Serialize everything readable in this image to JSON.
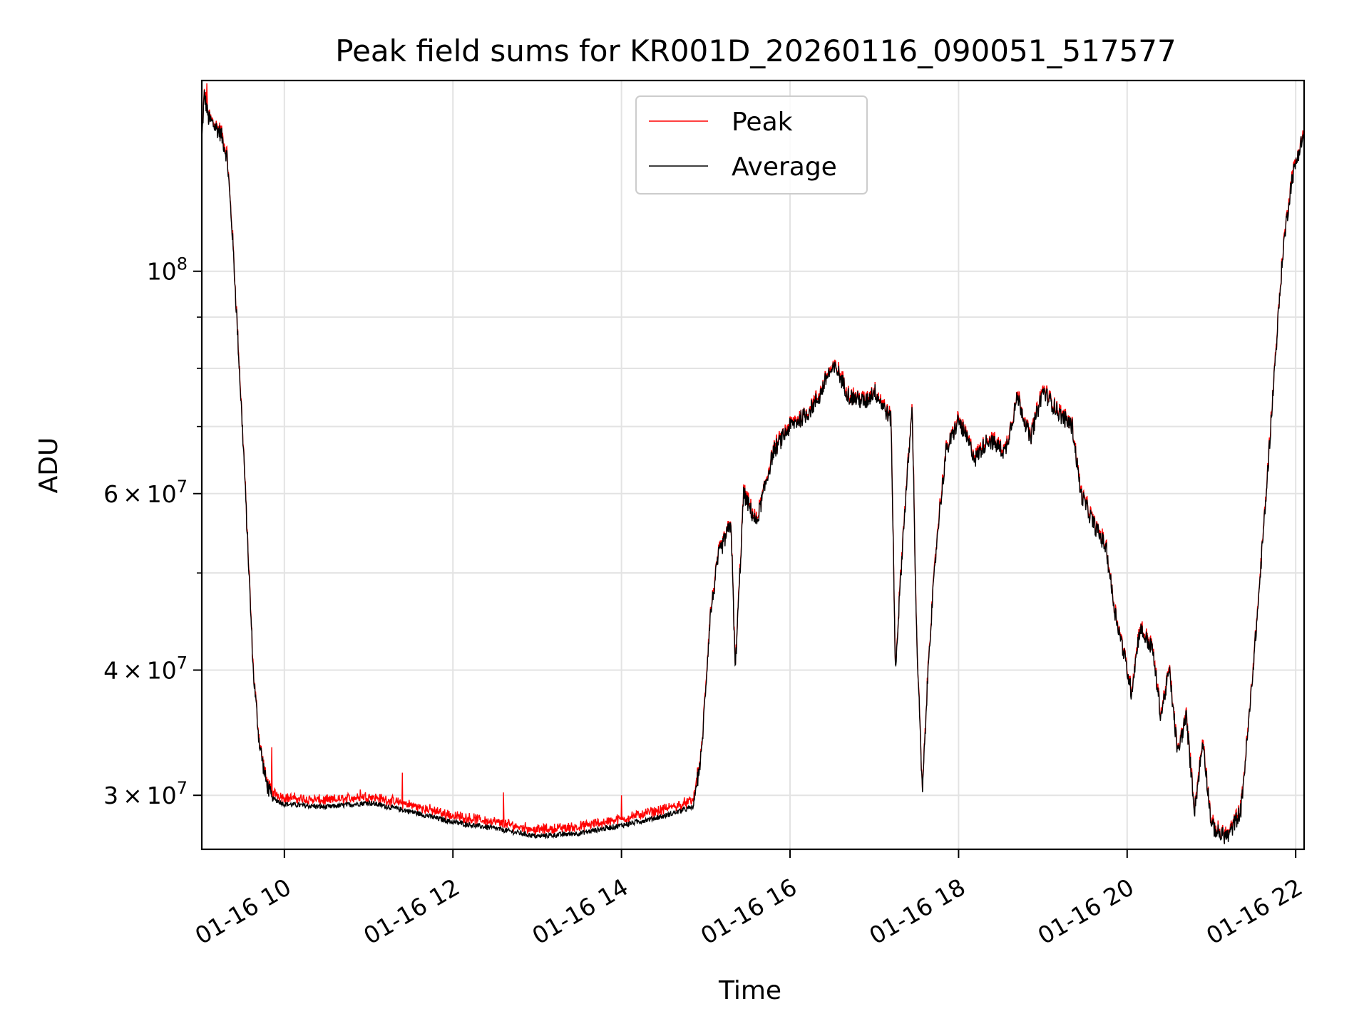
{
  "chart_data": {
    "type": "line",
    "title": "Peak field sums for KR001D_20260116_090051_517577",
    "xlabel": "Time",
    "ylabel": "ADU",
    "yscale": "log",
    "xlim_hours": [
      9.02,
      22.1
    ],
    "ylim": [
      26500000,
      155000000
    ],
    "grid": true,
    "legend_position": "upper center",
    "x_ticks": [
      {
        "value": 10,
        "label": "01-16 10"
      },
      {
        "value": 12,
        "label": "01-16 12"
      },
      {
        "value": 14,
        "label": "01-16 14"
      },
      {
        "value": 16,
        "label": "01-16 16"
      },
      {
        "value": 18,
        "label": "01-16 18"
      },
      {
        "value": 20,
        "label": "01-16 20"
      },
      {
        "value": 22,
        "label": "01-16 22"
      }
    ],
    "y_major_ticks": [
      {
        "value": 30000000,
        "mantissa": "3",
        "exp": "7"
      },
      {
        "value": 40000000,
        "mantissa": "4",
        "exp": "7"
      },
      {
        "value": 60000000,
        "mantissa": "6",
        "exp": "7"
      },
      {
        "value": 100000000,
        "mantissa": "",
        "exp": "8"
      }
    ],
    "y_minor_ticks": [
      50000000,
      70000000,
      80000000,
      90000000
    ],
    "series": [
      {
        "name": "Peak",
        "color": "#ff0000"
      },
      {
        "name": "Average",
        "color": "#000000"
      }
    ],
    "average_points": [
      [
        9.02,
        135
      ],
      [
        9.05,
        150
      ],
      [
        9.1,
        142
      ],
      [
        9.25,
        137
      ],
      [
        9.32,
        130
      ],
      [
        9.38,
        110
      ],
      [
        9.45,
        85
      ],
      [
        9.52,
        65
      ],
      [
        9.58,
        50
      ],
      [
        9.63,
        40
      ],
      [
        9.7,
        34
      ],
      [
        9.78,
        31
      ],
      [
        9.85,
        29.8
      ],
      [
        10.0,
        29.4
      ],
      [
        10.5,
        29.2
      ],
      [
        11.0,
        29.5
      ],
      [
        11.5,
        28.9
      ],
      [
        12.0,
        28.2
      ],
      [
        12.5,
        27.8
      ],
      [
        13.0,
        27.3
      ],
      [
        13.5,
        27.5
      ],
      [
        14.0,
        28.0
      ],
      [
        14.5,
        28.6
      ],
      [
        14.85,
        29.2
      ],
      [
        14.95,
        33
      ],
      [
        15.05,
        45
      ],
      [
        15.15,
        52
      ],
      [
        15.3,
        56
      ],
      [
        15.35,
        40
      ],
      [
        15.45,
        60
      ],
      [
        15.6,
        56
      ],
      [
        15.8,
        66
      ],
      [
        16.0,
        70
      ],
      [
        16.2,
        72
      ],
      [
        16.35,
        75
      ],
      [
        16.45,
        79
      ],
      [
        16.55,
        80
      ],
      [
        16.7,
        75
      ],
      [
        16.9,
        74
      ],
      [
        17.0,
        76
      ],
      [
        17.2,
        71
      ],
      [
        17.25,
        40
      ],
      [
        17.35,
        56
      ],
      [
        17.45,
        73
      ],
      [
        17.5,
        44
      ],
      [
        17.57,
        30
      ],
      [
        17.65,
        42
      ],
      [
        17.75,
        55
      ],
      [
        17.85,
        66
      ],
      [
        18.0,
        71
      ],
      [
        18.2,
        65
      ],
      [
        18.35,
        68
      ],
      [
        18.55,
        66
      ],
      [
        18.7,
        75
      ],
      [
        18.85,
        68
      ],
      [
        19.0,
        76
      ],
      [
        19.2,
        72
      ],
      [
        19.35,
        70
      ],
      [
        19.45,
        60
      ],
      [
        19.6,
        56
      ],
      [
        19.75,
        53
      ],
      [
        19.85,
        46
      ],
      [
        19.95,
        42
      ],
      [
        20.05,
        38
      ],
      [
        20.15,
        44
      ],
      [
        20.3,
        42
      ],
      [
        20.4,
        36
      ],
      [
        20.5,
        40
      ],
      [
        20.6,
        33
      ],
      [
        20.7,
        36
      ],
      [
        20.8,
        29
      ],
      [
        20.9,
        34
      ],
      [
        21.0,
        28
      ],
      [
        21.1,
        27.4
      ],
      [
        21.2,
        27.3
      ],
      [
        21.35,
        29
      ],
      [
        21.45,
        36
      ],
      [
        21.55,
        46
      ],
      [
        21.65,
        60
      ],
      [
        21.75,
        80
      ],
      [
        21.85,
        105
      ],
      [
        21.95,
        123
      ],
      [
        22.05,
        133
      ],
      [
        22.1,
        137
      ]
    ],
    "peak_spikes": [
      [
        9.08,
        154
      ],
      [
        9.85,
        33.5
      ],
      [
        10.9,
        30.4
      ],
      [
        11.4,
        31.6
      ],
      [
        12.6,
        30.2
      ],
      [
        14.0,
        30.0
      ]
    ]
  }
}
